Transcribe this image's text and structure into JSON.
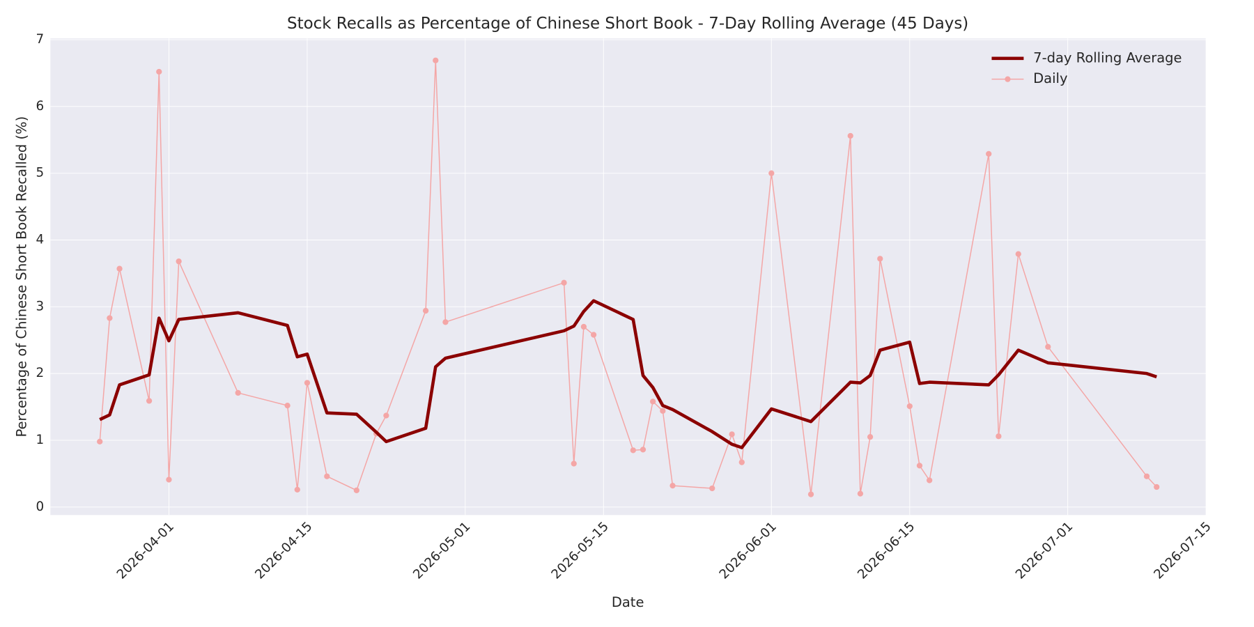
{
  "chart_data": {
    "type": "line",
    "title": "Stock Recalls as Percentage of Chinese Short Book - 7-Day Rolling Average (45 Days)",
    "x_label": "Date",
    "y_label": "Percentage of Chinese Short Book Recalled (%)",
    "x": [
      "2026-03-25",
      "2026-03-26",
      "2026-03-27",
      "2026-03-30",
      "2026-03-31",
      "2026-04-01",
      "2026-04-02",
      "2026-04-08",
      "2026-04-13",
      "2026-04-14",
      "2026-04-15",
      "2026-04-17",
      "2026-04-20",
      "2026-04-22",
      "2026-04-23",
      "2026-04-27",
      "2026-04-28",
      "2026-04-29",
      "2026-05-11",
      "2026-05-12",
      "2026-05-13",
      "2026-05-14",
      "2026-05-18",
      "2026-05-19",
      "2026-05-20",
      "2026-05-21",
      "2026-05-22",
      "2026-05-26",
      "2026-05-28",
      "2026-05-29",
      "2026-06-01",
      "2026-06-05",
      "2026-06-09",
      "2026-06-10",
      "2026-06-11",
      "2026-06-12",
      "2026-06-15",
      "2026-06-16",
      "2026-06-17",
      "2026-06-23",
      "2026-06-24",
      "2026-06-26",
      "2026-06-29",
      "2026-07-09",
      "2026-07-10"
    ],
    "series": [
      {
        "name": "7-day Rolling Average",
        "color": "#8b0000",
        "width": 4,
        "markers": false,
        "values": [
          1.31,
          1.38,
          1.83,
          1.98,
          2.83,
          2.49,
          2.81,
          2.91,
          2.72,
          2.25,
          2.29,
          1.41,
          1.39,
          1.12,
          0.98,
          1.18,
          2.1,
          2.23,
          2.64,
          2.71,
          2.93,
          3.09,
          2.81,
          1.97,
          1.79,
          1.52,
          1.46,
          1.13,
          0.94,
          0.89,
          1.47,
          1.28,
          1.87,
          1.86,
          1.97,
          2.35,
          2.47,
          1.85,
          1.87,
          1.83,
          1.98,
          2.35,
          2.16,
          2.0,
          1.95
        ]
      },
      {
        "name": "Daily",
        "color": "#f4a6a6",
        "width": 1.3,
        "markers": true,
        "values": [
          0.98,
          2.83,
          3.57,
          1.59,
          6.52,
          0.41,
          3.68,
          1.71,
          1.52,
          0.26,
          1.86,
          0.46,
          0.25,
          1.1,
          1.37,
          2.94,
          6.69,
          2.77,
          3.36,
          0.65,
          2.7,
          2.58,
          0.85,
          0.86,
          1.58,
          1.44,
          0.32,
          0.28,
          1.09,
          0.67,
          5.0,
          0.19,
          5.56,
          0.2,
          1.05,
          3.72,
          1.51,
          0.62,
          0.4,
          5.29,
          1.06,
          3.79,
          2.4,
          0.46,
          0.3
        ]
      }
    ],
    "xlim": [
      "2026-03-20",
      "2026-07-15"
    ],
    "xticks": [
      "2026-04-01",
      "2026-04-15",
      "2026-05-01",
      "2026-05-15",
      "2026-06-01",
      "2026-06-15",
      "2026-07-01",
      "2026-07-15"
    ],
    "ylim": [
      -0.12,
      7.02
    ],
    "yticks": [
      0,
      1,
      2,
      3,
      4,
      5,
      6,
      7
    ],
    "grid": true,
    "legend": "upper right"
  }
}
